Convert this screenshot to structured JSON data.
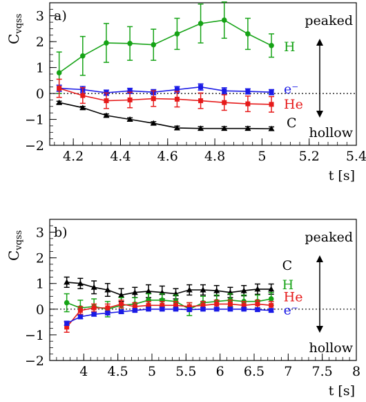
{
  "chart_data": [
    {
      "type": "line",
      "panel_label": "a)",
      "ylabel_main": "C",
      "ylabel_sub": "vqss",
      "xlabel": "t [s]",
      "xlim": [
        4.1,
        5.4
      ],
      "ylim": [
        -2,
        3.5
      ],
      "xticks": [
        4.2,
        4.4,
        4.6,
        4.8,
        5,
        5.2,
        5.4
      ],
      "yticks": [
        -2,
        -1,
        0,
        1,
        2,
        3
      ],
      "zero_line": true,
      "annotation_top": "peaked",
      "annotation_bottom": "hollow",
      "series": [
        {
          "name": "H",
          "color": "#16a316",
          "marker": "circle",
          "x": [
            4.14,
            4.24,
            4.34,
            4.44,
            4.54,
            4.64,
            4.74,
            4.84,
            4.94,
            5.04
          ],
          "y": [
            0.8,
            1.45,
            1.95,
            1.93,
            1.88,
            2.3,
            2.7,
            2.83,
            2.3,
            1.85
          ],
          "err": [
            0.8,
            0.75,
            0.75,
            0.65,
            0.6,
            0.6,
            0.75,
            0.7,
            0.6,
            0.45
          ]
        },
        {
          "name": "e⁻",
          "color": "#1a1ae6",
          "marker": "square",
          "x": [
            4.14,
            4.24,
            4.34,
            4.44,
            4.54,
            4.64,
            4.74,
            4.84,
            4.94,
            5.04
          ],
          "y": [
            0.2,
            0.15,
            0.03,
            0.1,
            0.05,
            0.15,
            0.25,
            0.1,
            0.08,
            0.05
          ],
          "err": [
            0.12,
            0.12,
            0.1,
            0.1,
            0.1,
            0.12,
            0.12,
            0.12,
            0.1,
            0.1
          ]
        },
        {
          "name": "He",
          "color": "#e61a1a",
          "marker": "square",
          "x": [
            4.14,
            4.24,
            4.34,
            4.44,
            4.54,
            4.64,
            4.74,
            4.84,
            4.94,
            5.04
          ],
          "y": [
            0.2,
            -0.08,
            -0.28,
            -0.25,
            -0.2,
            -0.22,
            -0.28,
            -0.35,
            -0.4,
            -0.42
          ],
          "err": [
            0.35,
            0.3,
            0.3,
            0.3,
            0.3,
            0.3,
            0.3,
            0.3,
            0.3,
            0.3
          ]
        },
        {
          "name": "C",
          "color": "#000000",
          "marker": "triangle",
          "x": [
            4.14,
            4.24,
            4.34,
            4.44,
            4.54,
            4.64,
            4.74,
            4.84,
            4.94,
            5.04
          ],
          "y": [
            -0.35,
            -0.55,
            -0.85,
            -1.0,
            -1.15,
            -1.33,
            -1.35,
            -1.35,
            -1.35,
            -1.36
          ],
          "err": [
            0.05,
            0.05,
            0.06,
            0.06,
            0.06,
            0.07,
            0.07,
            0.07,
            0.07,
            0.07
          ]
        }
      ],
      "series_labels": [
        "H",
        "e⁻",
        "He",
        "C"
      ]
    },
    {
      "type": "line",
      "panel_label": "b)",
      "ylabel_main": "C",
      "ylabel_sub": "vqss",
      "xlabel": "t [s]",
      "xlim": [
        3.5,
        8
      ],
      "ylim": [
        -2,
        3.5
      ],
      "xticks": [
        4,
        4.5,
        5,
        5.5,
        6,
        6.5,
        7,
        7.5,
        8
      ],
      "yticks": [
        -2,
        -1,
        0,
        1,
        2,
        3
      ],
      "zero_line": true,
      "annotation_top": "peaked",
      "annotation_bottom": "hollow",
      "series": [
        {
          "name": "C",
          "color": "#000000",
          "marker": "triangle",
          "x": [
            3.75,
            3.95,
            4.15,
            4.35,
            4.55,
            4.75,
            4.95,
            5.15,
            5.35,
            5.55,
            5.75,
            5.95,
            6.15,
            6.35,
            6.55,
            6.75
          ],
          "y": [
            1.05,
            1.0,
            0.85,
            0.75,
            0.55,
            0.65,
            0.7,
            0.65,
            0.6,
            0.75,
            0.75,
            0.72,
            0.65,
            0.72,
            0.78,
            0.78
          ],
          "err": [
            0.2,
            0.2,
            0.25,
            0.25,
            0.25,
            0.2,
            0.25,
            0.25,
            0.2,
            0.2,
            0.2,
            0.2,
            0.2,
            0.2,
            0.2,
            0.2
          ]
        },
        {
          "name": "H",
          "color": "#16a316",
          "marker": "circle",
          "x": [
            3.75,
            3.95,
            4.15,
            4.35,
            4.55,
            4.75,
            4.95,
            5.15,
            5.35,
            5.55,
            5.75,
            5.95,
            6.15,
            6.35,
            6.55,
            6.75
          ],
          "y": [
            0.25,
            0.05,
            0.1,
            0.0,
            0.15,
            0.2,
            0.35,
            0.35,
            0.3,
            0.0,
            0.25,
            0.3,
            0.35,
            0.3,
            0.3,
            0.4
          ],
          "err": [
            0.35,
            0.3,
            0.3,
            0.3,
            0.3,
            0.25,
            0.25,
            0.25,
            0.25,
            0.25,
            0.25,
            0.25,
            0.25,
            0.25,
            0.25,
            0.25
          ]
        },
        {
          "name": "He",
          "color": "#e61a1a",
          "marker": "square",
          "x": [
            3.75,
            3.95,
            4.15,
            4.35,
            4.55,
            4.75,
            4.95,
            5.15,
            5.35,
            5.55,
            5.75,
            5.95,
            6.15,
            6.35,
            6.55,
            6.75
          ],
          "y": [
            -0.7,
            -0.05,
            0.05,
            0.05,
            0.2,
            0.1,
            0.15,
            0.15,
            0.15,
            0.1,
            0.15,
            0.2,
            0.2,
            0.15,
            0.2,
            0.15
          ],
          "err": [
            0.2,
            0.15,
            0.15,
            0.15,
            0.15,
            0.15,
            0.15,
            0.15,
            0.15,
            0.15,
            0.15,
            0.15,
            0.15,
            0.15,
            0.15,
            0.15
          ]
        },
        {
          "name": "e⁻",
          "color": "#1a1ae6",
          "marker": "square",
          "x": [
            3.75,
            3.95,
            4.15,
            4.35,
            4.55,
            4.75,
            4.95,
            5.15,
            5.35,
            5.55,
            5.75,
            5.95,
            6.15,
            6.35,
            6.55,
            6.75
          ],
          "y": [
            -0.55,
            -0.3,
            -0.2,
            -0.15,
            -0.1,
            -0.05,
            0.0,
            0.0,
            0.0,
            -0.02,
            0.0,
            0.0,
            0.0,
            0.0,
            -0.02,
            -0.05
          ],
          "err": [
            0.08,
            0.07,
            0.07,
            0.07,
            0.07,
            0.06,
            0.06,
            0.06,
            0.06,
            0.06,
            0.06,
            0.06,
            0.06,
            0.06,
            0.06,
            0.06
          ]
        }
      ],
      "series_labels": [
        "C",
        "H",
        "He",
        "e⁻"
      ]
    }
  ]
}
